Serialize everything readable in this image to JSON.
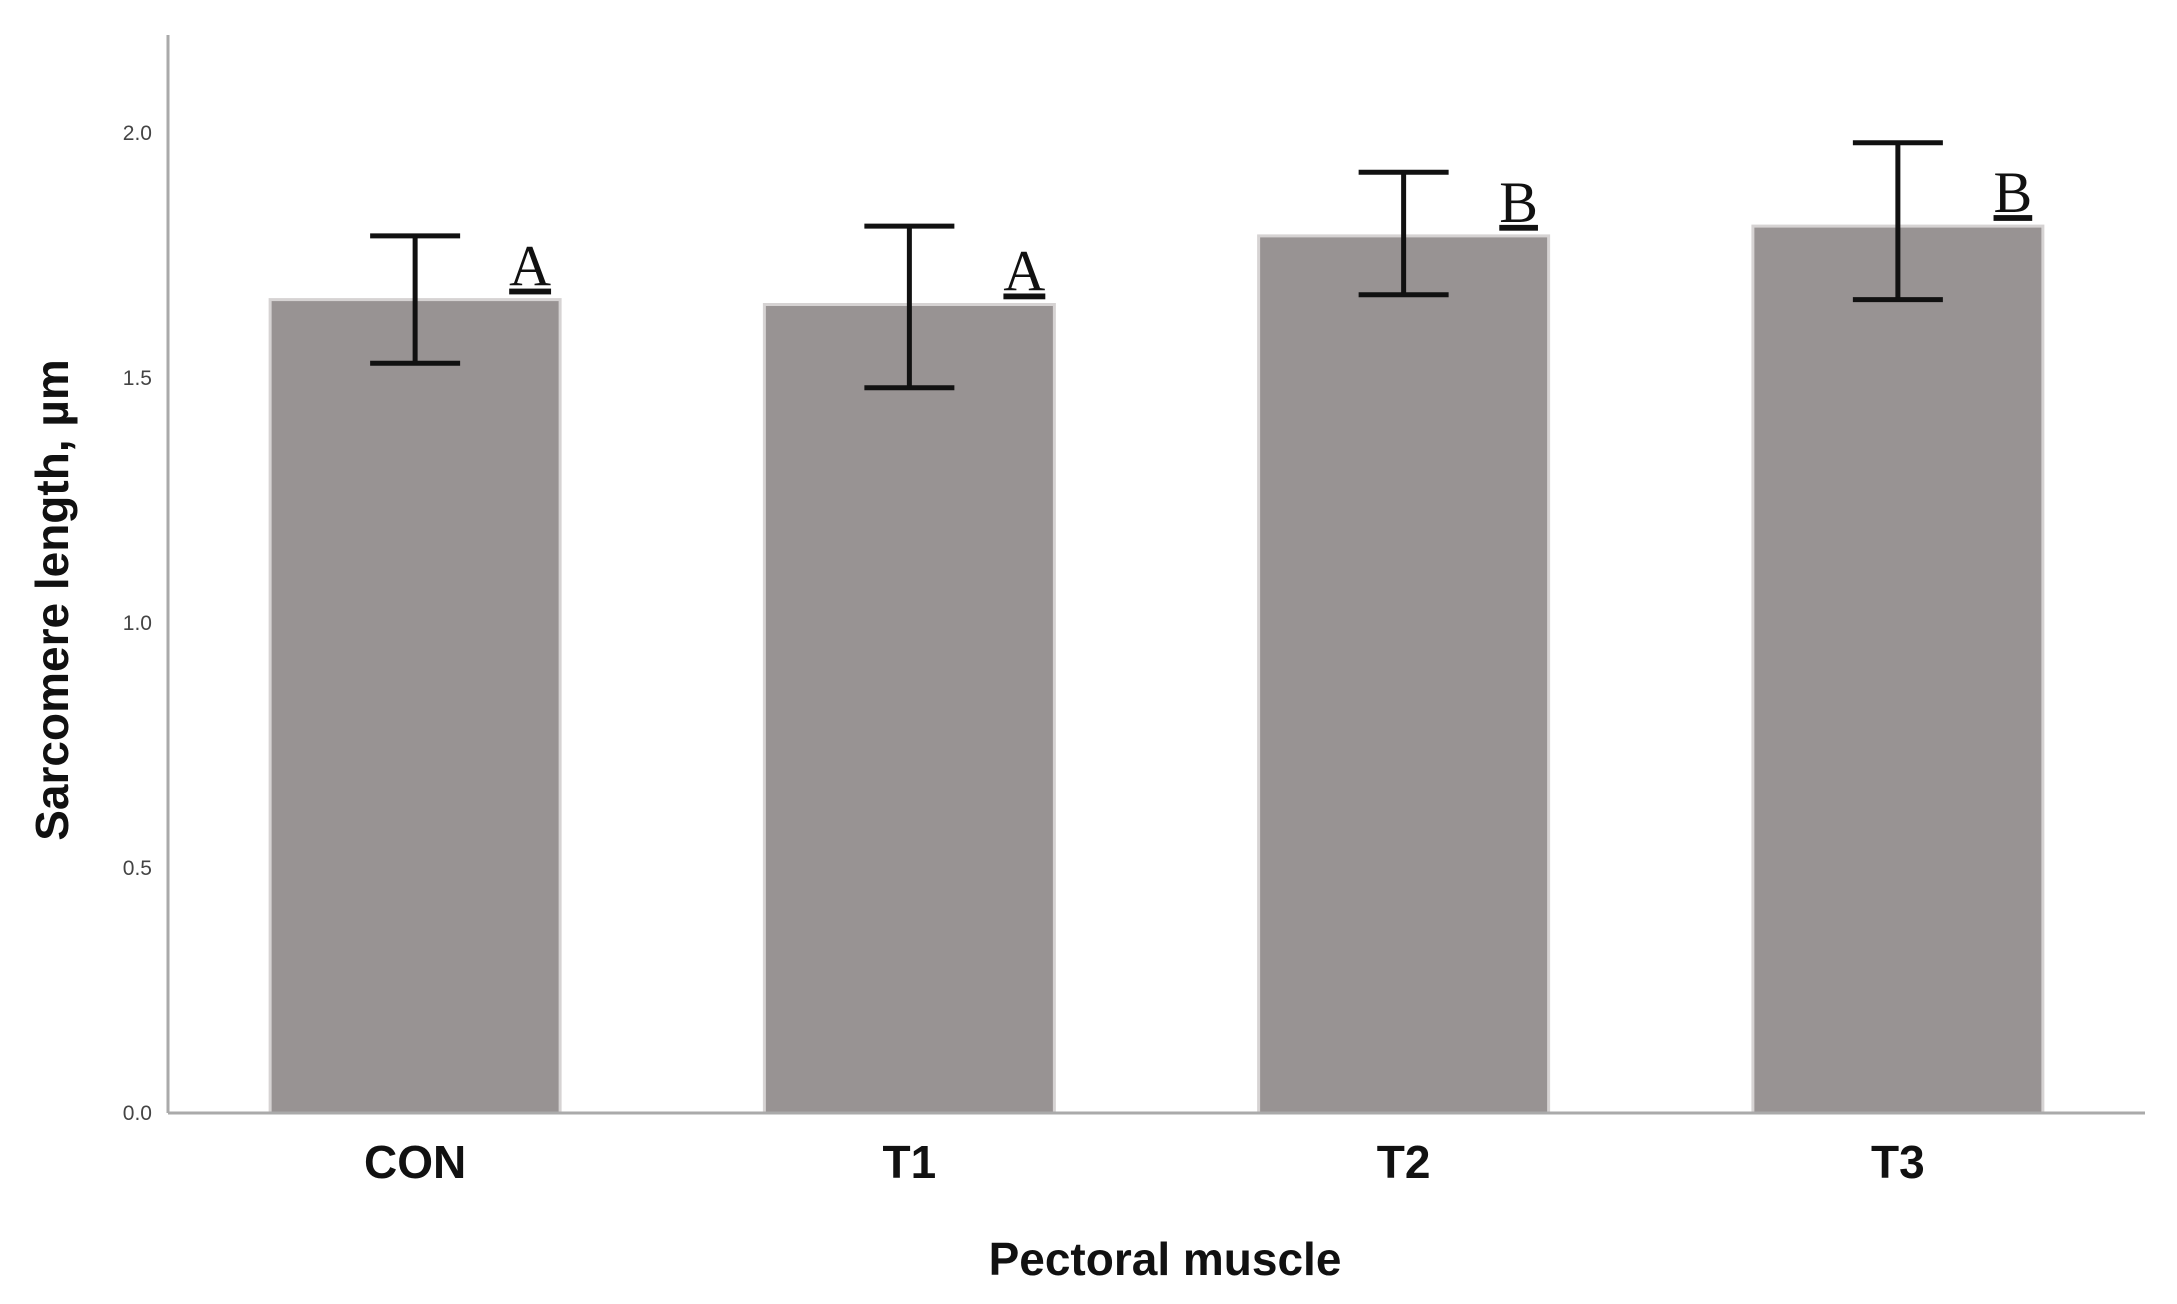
{
  "chart_data": {
    "type": "bar",
    "title": "",
    "xlabel": "Pectoral muscle",
    "ylabel": "Sarcomere length, µm",
    "categories": [
      "CON",
      "T1",
      "T2",
      "T3"
    ],
    "values": [
      1.66,
      1.65,
      1.79,
      1.81
    ],
    "error_low": [
      1.53,
      1.48,
      1.67,
      1.66
    ],
    "error_high": [
      1.79,
      1.81,
      1.92,
      1.98
    ],
    "significance_letters": [
      "A",
      "A",
      "B",
      "B"
    ],
    "ylim": [
      0.0,
      2.2
    ],
    "yticks": [
      "0.0",
      "0.5",
      "1.0",
      "1.5",
      "2.0"
    ],
    "grid": false,
    "colors": {
      "bar": "#989393",
      "bar_edge": "#d6d3d3",
      "axis": "#aaaaaa",
      "error": "#111111"
    }
  }
}
